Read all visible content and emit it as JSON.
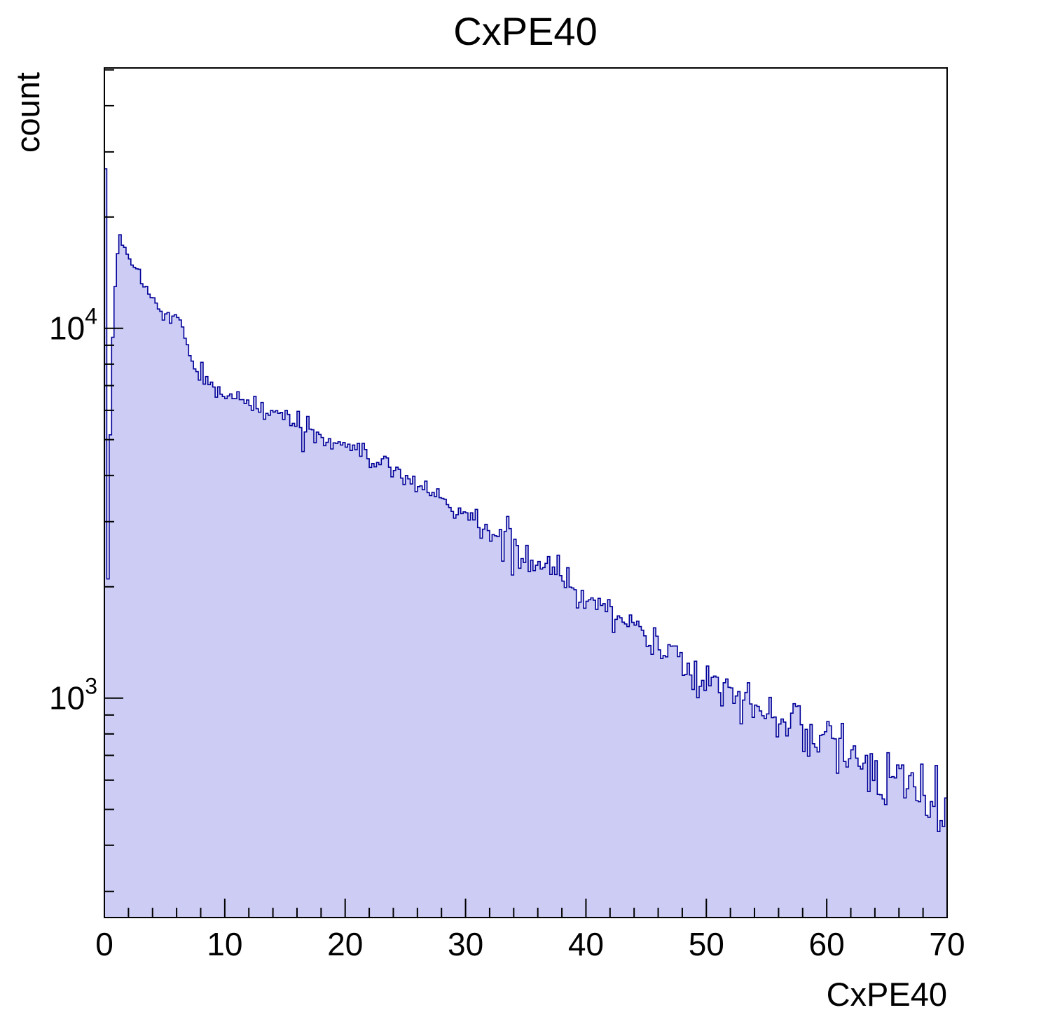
{
  "chart_data": {
    "type": "bar",
    "subtype": "histogram-log-y",
    "title": "CxPE40",
    "xlabel": "CxPE40",
    "ylabel": "count",
    "x_range": [
      0,
      70
    ],
    "bin_width": 0.2,
    "y_scale": "log",
    "ylim": [
      255,
      50600
    ],
    "grid": false,
    "legend": "none",
    "x_ticks": {
      "major": [
        0,
        10,
        20,
        30,
        40,
        50,
        60,
        70
      ],
      "minor_step": 2
    },
    "y_ticks": {
      "major": [
        {
          "value": 1000,
          "label_base": "10",
          "label_exp": "3"
        },
        {
          "value": 10000,
          "label_base": "10",
          "label_exp": "4"
        }
      ]
    },
    "colors": {
      "fill": "#ccccf4",
      "line": "#000099",
      "axis": "#000000",
      "background": "#ffffff"
    },
    "envelope": [
      [
        0.1,
        27000
      ],
      [
        0.3,
        2100
      ],
      [
        0.5,
        5200
      ],
      [
        0.7,
        9500
      ],
      [
        0.9,
        13000
      ],
      [
        1.1,
        16000
      ],
      [
        1.3,
        17800
      ],
      [
        1.5,
        17200
      ],
      [
        1.8,
        16200
      ],
      [
        2.2,
        15400
      ],
      [
        2.6,
        14800
      ],
      [
        3.0,
        14000
      ],
      [
        3.5,
        13000
      ],
      [
        4.0,
        12100
      ],
      [
        4.4,
        11300
      ],
      [
        4.8,
        10700
      ],
      [
        5.2,
        11000
      ],
      [
        5.6,
        10500
      ],
      [
        6.0,
        11200
      ],
      [
        6.4,
        10300
      ],
      [
        6.8,
        9200
      ],
      [
        7.2,
        8200
      ],
      [
        7.6,
        7800
      ],
      [
        8.0,
        7400
      ],
      [
        8.6,
        7100
      ],
      [
        9.2,
        6900
      ],
      [
        10,
        6650
      ],
      [
        11,
        6400
      ],
      [
        12,
        6200
      ],
      [
        13,
        6050
      ],
      [
        14,
        5950
      ],
      [
        15,
        5850
      ],
      [
        16,
        5600
      ],
      [
        17,
        5300
      ],
      [
        18,
        5100
      ],
      [
        19,
        4950
      ],
      [
        20,
        4800
      ],
      [
        21,
        4650
      ],
      [
        22,
        4500
      ],
      [
        23,
        4350
      ],
      [
        24,
        4150
      ],
      [
        25,
        3950
      ],
      [
        26,
        3750
      ],
      [
        27,
        3600
      ],
      [
        28,
        3450
      ],
      [
        29,
        3300
      ],
      [
        30,
        3150
      ],
      [
        31,
        3000
      ],
      [
        32,
        2870
      ],
      [
        33,
        2750
      ],
      [
        34,
        2600
      ],
      [
        35,
        2450
      ],
      [
        36,
        2300
      ],
      [
        37,
        2200
      ],
      [
        38,
        2100
      ],
      [
        39,
        1980
      ],
      [
        40,
        1870
      ],
      [
        41,
        1780
      ],
      [
        42,
        1700
      ],
      [
        43,
        1620
      ],
      [
        44,
        1550
      ],
      [
        45,
        1480
      ],
      [
        46,
        1400
      ],
      [
        47,
        1330
      ],
      [
        48,
        1270
      ],
      [
        49,
        1220
      ],
      [
        50,
        1170
      ],
      [
        51,
        1110
      ],
      [
        52,
        1050
      ],
      [
        53,
        1000
      ],
      [
        54,
        960
      ],
      [
        55,
        930
      ],
      [
        56,
        890
      ],
      [
        57,
        850
      ],
      [
        58,
        820
      ],
      [
        59,
        790
      ],
      [
        60,
        760
      ],
      [
        61,
        730
      ],
      [
        62,
        700
      ],
      [
        63,
        670
      ],
      [
        64,
        650
      ],
      [
        65,
        630
      ],
      [
        66,
        610
      ],
      [
        67,
        590
      ],
      [
        68,
        570
      ],
      [
        69,
        555
      ],
      [
        70,
        545
      ]
    ],
    "outliers": [
      {
        "x": 8.1,
        "f": 1.1
      },
      {
        "x": 16.5,
        "f": 0.86
      },
      {
        "x": 16.9,
        "f": 1.1
      },
      {
        "x": 23.5,
        "f": 1.06
      },
      {
        "x": 33.1,
        "f": 0.8
      },
      {
        "x": 33.5,
        "f": 1.12
      },
      {
        "x": 33.9,
        "f": 0.8
      },
      {
        "x": 34.5,
        "f": 0.85
      }
    ],
    "noise_seed": 1337,
    "noise_scale": 2.2
  }
}
